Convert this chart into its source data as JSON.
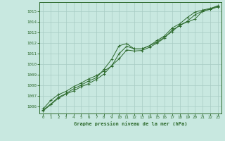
{
  "title": "Graphe pression niveau de la mer (hPa)",
  "bg_color": "#c8e8e0",
  "grid_color": "#a8ccc4",
  "line_color": "#2d6a2d",
  "spine_color": "#2d6a2d",
  "xlim": [
    -0.5,
    23.5
  ],
  "ylim": [
    1005.3,
    1015.9
  ],
  "xticks": [
    0,
    1,
    2,
    3,
    4,
    5,
    6,
    7,
    8,
    9,
    10,
    11,
    12,
    13,
    14,
    15,
    16,
    17,
    18,
    19,
    20,
    21,
    22,
    23
  ],
  "yticks": [
    1006,
    1007,
    1008,
    1009,
    1010,
    1011,
    1012,
    1013,
    1014,
    1015
  ],
  "line1": [
    1005.55,
    1006.15,
    1006.75,
    1007.15,
    1007.45,
    1007.85,
    1008.15,
    1008.55,
    1009.05,
    1009.85,
    1010.5,
    1011.35,
    1011.25,
    1011.3,
    1011.6,
    1012.0,
    1012.5,
    1013.25,
    1013.65,
    1014.1,
    1014.7,
    1015.05,
    1015.2,
    1015.45
  ],
  "line2": [
    1005.75,
    1006.55,
    1007.1,
    1007.4,
    1007.85,
    1008.2,
    1008.6,
    1008.9,
    1009.35,
    1009.8,
    1011.0,
    1011.7,
    1011.45,
    1011.45,
    1011.75,
    1012.1,
    1012.6,
    1013.1,
    1013.75,
    1014.0,
    1014.3,
    1015.05,
    1015.25,
    1015.5
  ],
  "line3": [
    1005.65,
    1006.2,
    1006.85,
    1007.2,
    1007.65,
    1008.0,
    1008.4,
    1008.7,
    1009.5,
    1010.45,
    1011.75,
    1011.95,
    1011.45,
    1011.45,
    1011.75,
    1012.25,
    1012.7,
    1013.45,
    1013.85,
    1014.45,
    1014.95,
    1015.15,
    1015.3,
    1015.55
  ]
}
